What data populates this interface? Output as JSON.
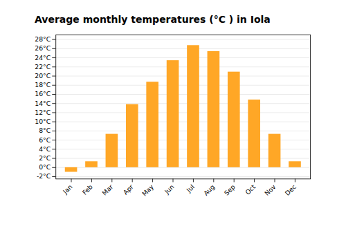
{
  "chart_data": {
    "type": "bar",
    "title": "Average monthly temperatures (°C ) in Iola",
    "categories": [
      "Jan",
      "Feb",
      "Mar",
      "Apr",
      "May",
      "Jun",
      "Jul",
      "Aug",
      "Sep",
      "Oct",
      "Nov",
      "Dec"
    ],
    "values": [
      -1.0,
      1.3,
      7.3,
      13.8,
      18.7,
      23.4,
      26.7,
      25.4,
      20.9,
      14.8,
      7.3,
      1.3
    ],
    "color": "#FFA726",
    "ylim": [
      -2.5,
      29
    ],
    "yticks": [
      {
        "value": -2,
        "label": "-2°C"
      },
      {
        "value": 0,
        "label": "0°C"
      },
      {
        "value": 2,
        "label": "2°C"
      },
      {
        "value": 4,
        "label": "4°C"
      },
      {
        "value": 6,
        "label": "6°C"
      },
      {
        "value": 8,
        "label": "8°C"
      },
      {
        "value": 10,
        "label": "10°C"
      },
      {
        "value": 12,
        "label": "12°C"
      },
      {
        "value": 14,
        "label": "14°C"
      },
      {
        "value": 16,
        "label": "16°C"
      },
      {
        "value": 18,
        "label": "18°C"
      },
      {
        "value": 20,
        "label": "20°C"
      },
      {
        "value": 22,
        "label": "22°C"
      },
      {
        "value": 24,
        "label": "24°C"
      },
      {
        "value": 26,
        "label": "26°C"
      },
      {
        "value": 28,
        "label": "28°C"
      }
    ],
    "grid": true
  }
}
